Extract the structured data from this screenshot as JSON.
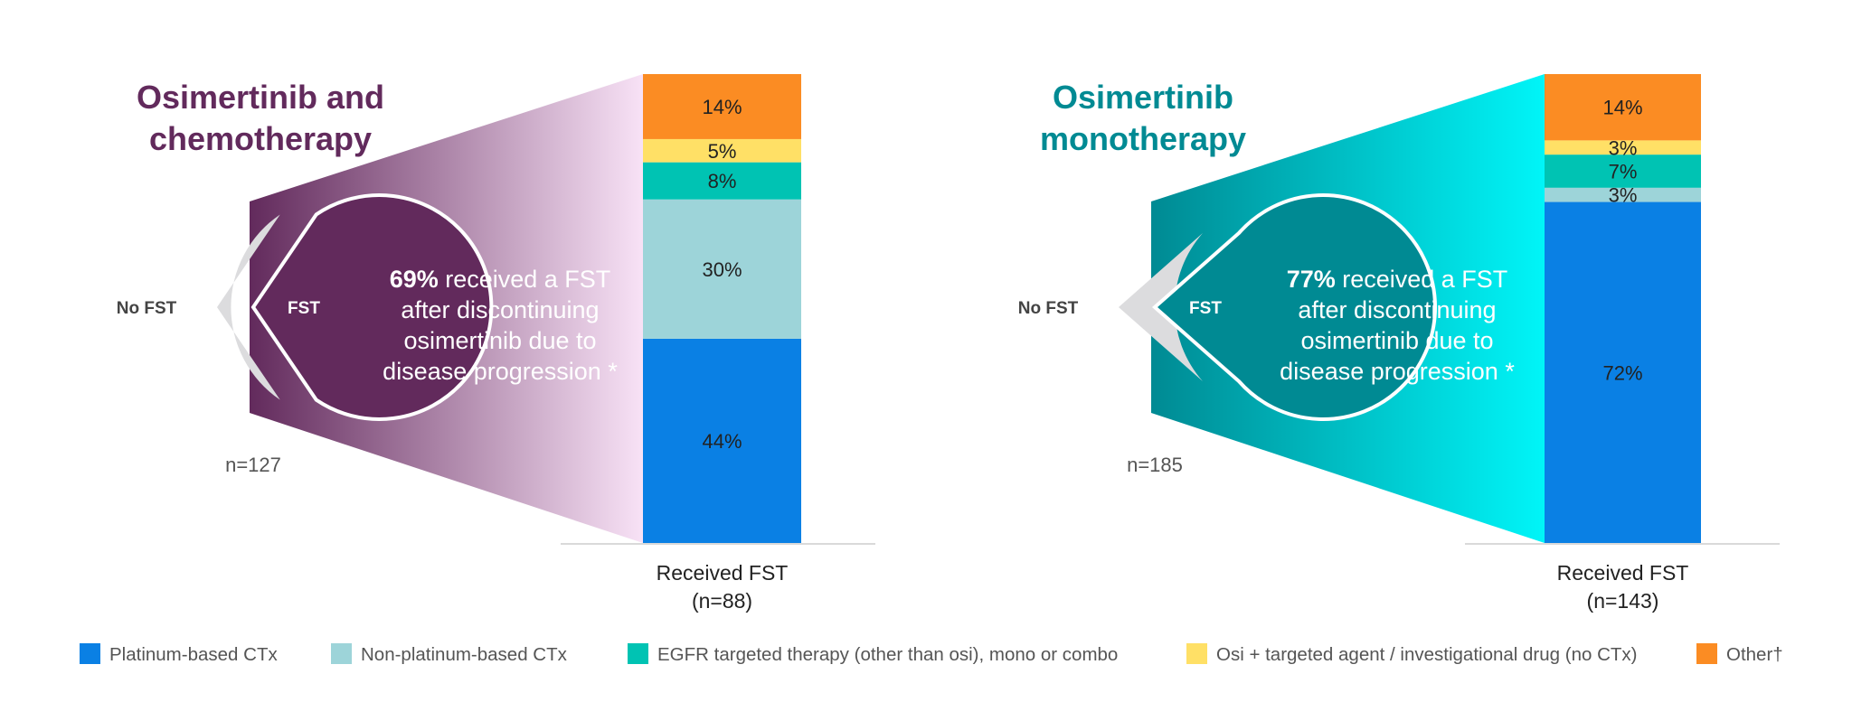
{
  "chart_data": [
    {
      "type": "bar",
      "title_lines": [
        "Osimertinib and",
        "chemotherapy"
      ],
      "theme_color": "#622a5c",
      "pie": {
        "fst_label": "FST",
        "no_fst_label": "No FST",
        "n_label": "n=127",
        "fst_percent": 69
      },
      "callout": {
        "percent_text": "69%",
        "line1_rest": " received a FST",
        "line2": "after discontinuing",
        "line3": "osimertinib due to",
        "line4": "disease progression *"
      },
      "bar_label_lines": [
        "Received FST",
        "(n=88)"
      ],
      "series": [
        {
          "key": "platinum",
          "value": 44,
          "label": "44%"
        },
        {
          "key": "nonplatinum",
          "value": 30,
          "label": "30%"
        },
        {
          "key": "egfr",
          "value": 8,
          "label": "8%"
        },
        {
          "key": "osi_targeted",
          "value": 5,
          "label": "5%"
        },
        {
          "key": "other",
          "value": 14,
          "label": "14%"
        }
      ]
    },
    {
      "type": "bar",
      "title_lines": [
        "Osimertinib",
        "monotherapy"
      ],
      "theme_color": "#008a93",
      "pie": {
        "fst_label": "FST",
        "no_fst_label": "No FST",
        "n_label": "n=185",
        "fst_percent": 77
      },
      "callout": {
        "percent_text": "77%",
        "line1_rest": " received a FST",
        "line2": "after discontinuing",
        "line3": "osimertinib due to",
        "line4": "disease progression *"
      },
      "bar_label_lines": [
        "Received FST",
        "(n=143)"
      ],
      "series": [
        {
          "key": "platinum",
          "value": 72,
          "label": "72%"
        },
        {
          "key": "nonplatinum",
          "value": 3,
          "label": "3%"
        },
        {
          "key": "egfr",
          "value": 7,
          "label": "7%"
        },
        {
          "key": "osi_targeted",
          "value": 3,
          "label": "3%"
        },
        {
          "key": "other",
          "value": 14,
          "label": "14%"
        }
      ]
    }
  ],
  "legend": [
    {
      "key": "platinum",
      "label": "Platinum-based CTx",
      "color": "#0a80e4"
    },
    {
      "key": "nonplatinum",
      "label": "Non-platinum-based CTx",
      "color": "#9dd4d9"
    },
    {
      "key": "egfr",
      "label": "EGFR targeted therapy (other than osi), mono or combo",
      "color": "#00c3b3"
    },
    {
      "key": "osi_targeted",
      "label": "Osi + targeted agent / investigational drug (no CTx)",
      "color": "#ffe066"
    },
    {
      "key": "other",
      "label": "Other†",
      "color": "#fb8c23"
    }
  ],
  "colors": {
    "no_fst_gray": "#dcdcde",
    "axis_line": "#d9d9d9",
    "text_dark": "#222222",
    "text_gray": "#555555",
    "gradient_left_light": "#f8e2f6",
    "gradient_right_light": "#00f5f8"
  }
}
